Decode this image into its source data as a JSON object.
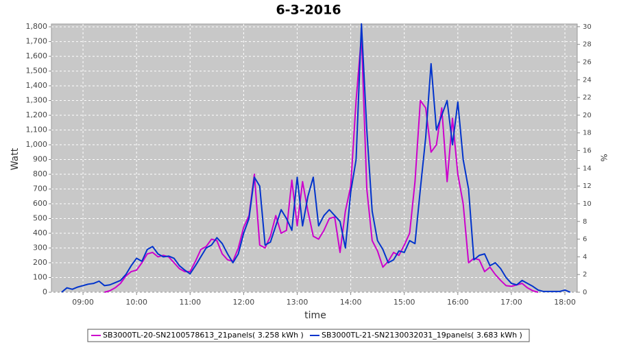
{
  "chart_data": {
    "type": "line",
    "title": "6-3-2016",
    "xlabel": "time",
    "ylabel": "Watt",
    "y2label": "%",
    "x": [
      8.6,
      8.7,
      8.8,
      8.9,
      9.0,
      9.1,
      9.2,
      9.3,
      9.4,
      9.5,
      9.6,
      9.7,
      9.8,
      9.9,
      10.0,
      10.1,
      10.2,
      10.3,
      10.4,
      10.5,
      10.6,
      10.7,
      10.8,
      10.9,
      11.0,
      11.1,
      11.2,
      11.3,
      11.4,
      11.5,
      11.6,
      11.7,
      11.8,
      11.9,
      12.0,
      12.1,
      12.2,
      12.3,
      12.4,
      12.5,
      12.6,
      12.7,
      12.8,
      12.9,
      13.0,
      13.1,
      13.2,
      13.3,
      13.4,
      13.5,
      13.6,
      13.7,
      13.8,
      13.9,
      14.0,
      14.1,
      14.2,
      14.3,
      14.4,
      14.5,
      14.6,
      14.7,
      14.8,
      14.9,
      15.0,
      15.1,
      15.2,
      15.3,
      15.4,
      15.5,
      15.6,
      15.7,
      15.8,
      15.9,
      16.0,
      16.1,
      16.2,
      16.3,
      16.4,
      16.5,
      16.6,
      16.7,
      16.8,
      16.9,
      17.0,
      17.1,
      17.2,
      17.3,
      17.4,
      17.5,
      17.6,
      17.7,
      17.8,
      17.9,
      18.0,
      18.1
    ],
    "series": [
      {
        "name": "SB3000TL-20-SN2100578613_21panels( 3.258 kWh )",
        "color": "#cc00cc",
        "values": [
          null,
          null,
          null,
          null,
          null,
          null,
          null,
          null,
          0,
          10,
          30,
          60,
          110,
          140,
          150,
          200,
          260,
          270,
          240,
          250,
          240,
          200,
          160,
          140,
          140,
          210,
          290,
          310,
          360,
          350,
          260,
          220,
          210,
          300,
          440,
          520,
          800,
          320,
          300,
          380,
          520,
          400,
          420,
          760,
          450,
          750,
          550,
          380,
          360,
          420,
          500,
          510,
          270,
          550,
          720,
          1300,
          1740,
          700,
          350,
          280,
          170,
          210,
          270,
          250,
          320,
          400,
          750,
          1300,
          1250,
          950,
          1000,
          1250,
          750,
          1180,
          800,
          600,
          200,
          230,
          220,
          140,
          170,
          120,
          80,
          45,
          40,
          50,
          60,
          30,
          10,
          0,
          null,
          null,
          null,
          null,
          null,
          null
        ]
      },
      {
        "name": "SB3000TL-21-SN2130032031_19panels( 3.683 kWh )",
        "color": "#0033cc",
        "values": [
          0,
          30,
          20,
          35,
          45,
          55,
          60,
          75,
          45,
          50,
          65,
          80,
          120,
          180,
          230,
          210,
          290,
          310,
          260,
          240,
          245,
          230,
          180,
          150,
          125,
          180,
          240,
          300,
          320,
          370,
          330,
          260,
          200,
          260,
          400,
          500,
          780,
          720,
          320,
          340,
          450,
          560,
          500,
          420,
          780,
          450,
          650,
          780,
          450,
          520,
          560,
          520,
          480,
          300,
          680,
          900,
          1820,
          1100,
          550,
          350,
          290,
          200,
          220,
          280,
          270,
          350,
          330,
          700,
          1050,
          1550,
          1100,
          1200,
          1300,
          1000,
          1290,
          900,
          700,
          220,
          250,
          260,
          180,
          200,
          160,
          100,
          60,
          50,
          80,
          60,
          40,
          15,
          5,
          5,
          5,
          5,
          15,
          0
        ]
      }
    ],
    "xlim": [
      8.41,
      18.23
    ],
    "xticks": [
      {
        "value": 9,
        "label": "09:00"
      },
      {
        "value": 10,
        "label": "10:00"
      },
      {
        "value": 11,
        "label": "11:00"
      },
      {
        "value": 12,
        "label": "12:00"
      },
      {
        "value": 13,
        "label": "13:00"
      },
      {
        "value": 14,
        "label": "14:00"
      },
      {
        "value": 15,
        "label": "15:00"
      },
      {
        "value": 16,
        "label": "16:00"
      },
      {
        "value": 17,
        "label": "17:00"
      },
      {
        "value": 18,
        "label": "18:00"
      }
    ],
    "ylim": [
      0,
      1819
    ],
    "yticks": [
      0,
      100,
      200,
      300,
      400,
      500,
      600,
      700,
      800,
      900,
      {
        "value": 1000,
        "label": "1,000"
      },
      {
        "value": 1100,
        "label": "1,100"
      },
      {
        "value": 1200,
        "label": "1,200"
      },
      {
        "value": 1300,
        "label": "1,300"
      },
      {
        "value": 1400,
        "label": "1,400"
      },
      {
        "value": 1500,
        "label": "1,500"
      },
      {
        "value": 1600,
        "label": "1,600"
      },
      {
        "value": 1700,
        "label": "1,700"
      },
      {
        "value": 1800,
        "label": "1,800"
      }
    ],
    "y2lim": [
      0,
      30.3
    ],
    "y2ticks": [
      0,
      2,
      4,
      6,
      8,
      10,
      12,
      14,
      16,
      18,
      20,
      22,
      24,
      26,
      28,
      30
    ],
    "grid": true
  }
}
